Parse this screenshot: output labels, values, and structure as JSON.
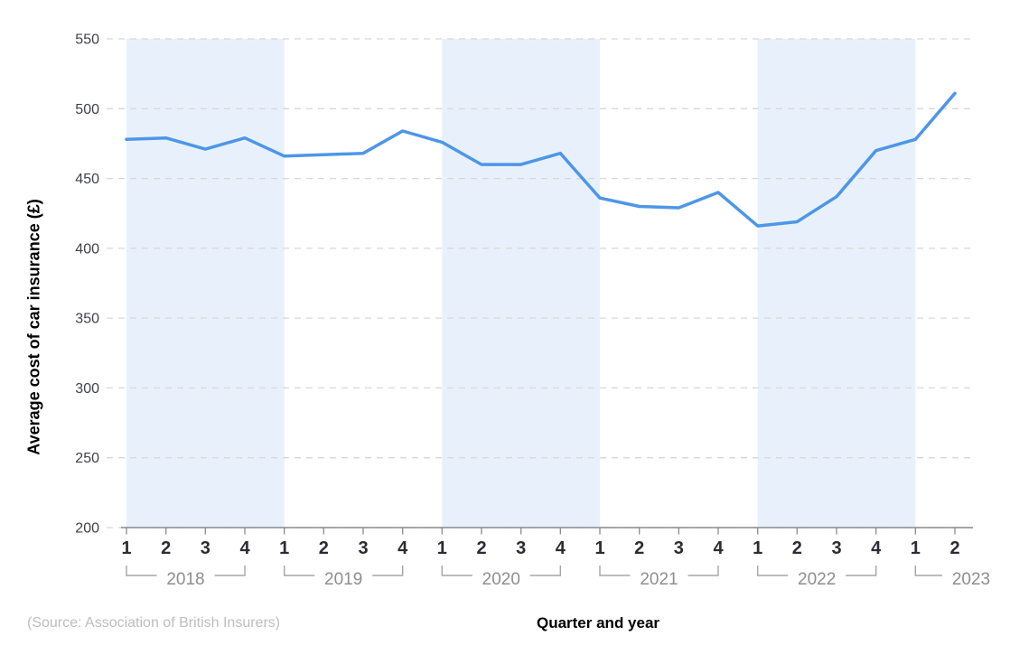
{
  "chart_data": {
    "type": "line",
    "title": "",
    "ylabel": "Average cost of car insurance (£)",
    "xlabel": "Quarter and year",
    "source": "(Source: Association of British Insurers)",
    "ylim": [
      200,
      550
    ],
    "y_ticks": [
      550,
      500,
      450,
      400,
      350,
      300,
      250,
      200
    ],
    "grid": "horizontal-dashed",
    "legend": "none",
    "years": [
      {
        "label": "2018",
        "shaded": true,
        "quarters": [
          "1",
          "2",
          "3",
          "4"
        ],
        "values": [
          478,
          479,
          471,
          479
        ]
      },
      {
        "label": "2019",
        "shaded": false,
        "quarters": [
          "1",
          "2",
          "3",
          "4"
        ],
        "values": [
          466,
          467,
          468,
          484
        ]
      },
      {
        "label": "2020",
        "shaded": true,
        "quarters": [
          "1",
          "2",
          "3",
          "4"
        ],
        "values": [
          476,
          460,
          460,
          468
        ]
      },
      {
        "label": "2021",
        "shaded": false,
        "quarters": [
          "1",
          "2",
          "3",
          "4"
        ],
        "values": [
          436,
          430,
          429,
          440
        ]
      },
      {
        "label": "2022",
        "shaded": true,
        "quarters": [
          "1",
          "2",
          "3",
          "4"
        ],
        "values": [
          416,
          419,
          437,
          470
        ]
      },
      {
        "label": "2023",
        "shaded": false,
        "quarters": [
          "1",
          "2"
        ],
        "values": [
          478,
          511
        ]
      }
    ],
    "series": [
      {
        "name": "Average cost of car insurance (£)",
        "values": [
          478,
          479,
          471,
          479,
          466,
          467,
          468,
          484,
          476,
          460,
          460,
          468,
          436,
          430,
          429,
          440,
          416,
          419,
          437,
          470,
          478,
          511
        ]
      }
    ],
    "colors": {
      "line": "#4d96e8",
      "band": "#e8f1fb",
      "gridline": "#d8d8d8",
      "axis": "#8a8a8e",
      "y_tick_label": "#40414a",
      "quarter_label": "#2b2b33",
      "year_label": "#8e8e8e",
      "bracket": "#a5a5a5",
      "title": "#000000",
      "source": "#bdbdbd"
    }
  }
}
